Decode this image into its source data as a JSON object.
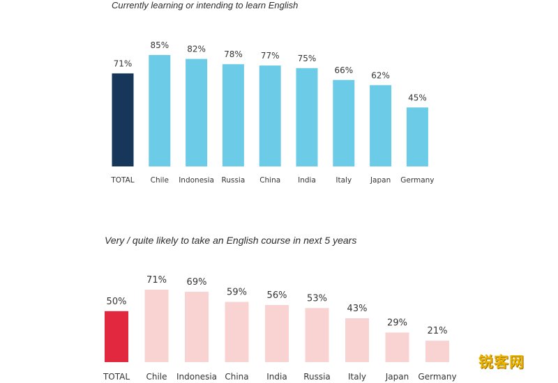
{
  "colors": {
    "chart1_highlight": "#16365a",
    "chart1_bars": "#6ccbe6",
    "chart2_highlight": "#e2283f",
    "chart2_bars": "#f8d3d2",
    "value_text": "#333333",
    "label_text": "#333333"
  },
  "chart_data": [
    {
      "type": "bar",
      "title": "Currently learning or intending to learn English",
      "categories": [
        "TOTAL",
        "Chile",
        "Indonesia",
        "Russia",
        "China",
        "India",
        "Italy",
        "Japan",
        "Germany"
      ],
      "values": [
        71,
        85,
        82,
        78,
        77,
        75,
        66,
        62,
        45
      ],
      "value_labels": [
        "71%",
        "85%",
        "82%",
        "78%",
        "77%",
        "75%",
        "66%",
        "62%",
        "45%"
      ],
      "unit": "%",
      "ylim": [
        0,
        100
      ],
      "grid": false,
      "legend": "none",
      "highlight_category": "TOTAL"
    },
    {
      "type": "bar",
      "title": "Very / quite likely to take an English course in next 5 years",
      "categories": [
        "TOTAL",
        "Chile",
        "Indonesia",
        "China",
        "India",
        "Russia",
        "Italy",
        "Japan",
        "Germany"
      ],
      "values": [
        50,
        71,
        69,
        59,
        56,
        53,
        43,
        29,
        21
      ],
      "value_labels": [
        "50%",
        "71%",
        "69%",
        "59%",
        "56%",
        "53%",
        "43%",
        "29%",
        "21%"
      ],
      "unit": "%",
      "ylim": [
        0,
        100
      ],
      "grid": false,
      "legend": "none",
      "highlight_category": "TOTAL"
    }
  ],
  "watermark": "锐客网"
}
